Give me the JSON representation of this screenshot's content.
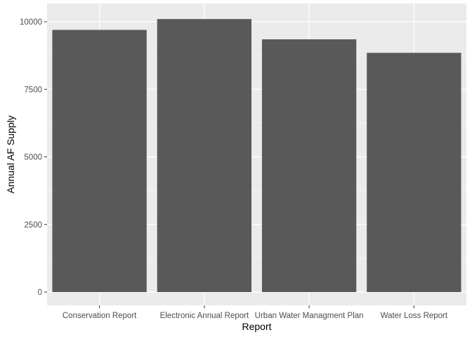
{
  "chart_data": {
    "type": "bar",
    "title": "",
    "xlabel": "Report",
    "ylabel": "Annual AF Supply",
    "categories": [
      "Conservation Report",
      "Electronic Annual Report",
      "Urban Water Managment Plan",
      "Water Loss Report"
    ],
    "values": [
      9700,
      10100,
      9350,
      8850
    ],
    "ylim": [
      0,
      10300
    ],
    "yticks": [
      0,
      2500,
      5000,
      7500,
      10000
    ],
    "ytick_labels": [
      "0",
      "2500",
      "5000",
      "7500",
      "10000"
    ],
    "grid": true,
    "legend": "none",
    "colors": {
      "panel_background": "#ebebeb",
      "grid_major": "#ffffff",
      "bar_fill": "#595959",
      "tick_label": "#4d4d4d",
      "tick_mark": "#333333"
    }
  }
}
